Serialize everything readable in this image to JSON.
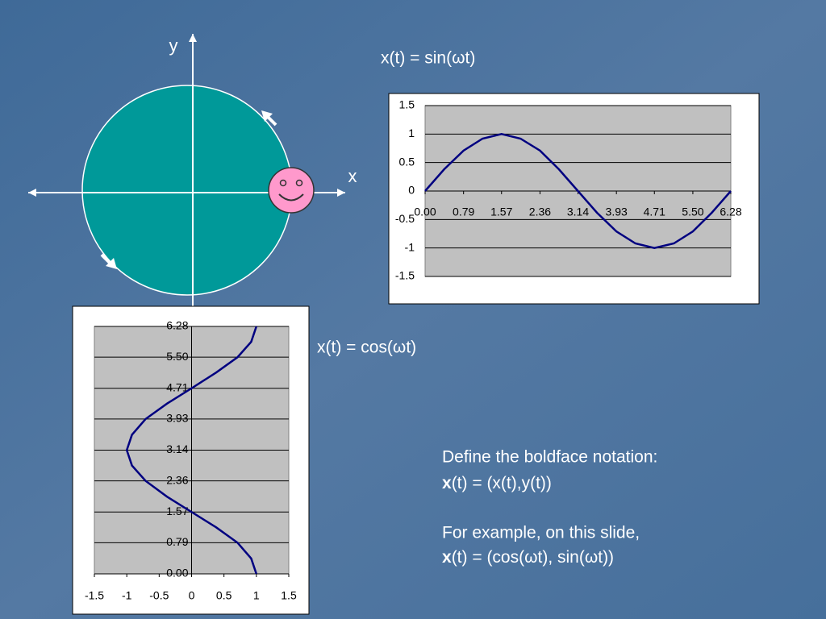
{
  "chart_data": [
    {
      "type": "line",
      "title": "x(t) = sin(ωt)",
      "x": [
        0,
        0.39,
        0.79,
        1.18,
        1.57,
        1.96,
        2.36,
        2.75,
        3.14,
        3.53,
        3.93,
        4.32,
        4.71,
        5.11,
        5.5,
        5.89,
        6.28
      ],
      "y": [
        0,
        0.38,
        0.71,
        0.92,
        1,
        0.92,
        0.71,
        0.38,
        0,
        -0.38,
        -0.71,
        -0.92,
        -1,
        -0.92,
        -0.71,
        -0.38,
        0
      ],
      "color": "#000080",
      "xlim": [
        0,
        6.28
      ],
      "ylim": [
        -1.5,
        1.5
      ],
      "xticks": [
        {
          "value": 0,
          "label": "0.00"
        },
        0.79,
        1.57,
        2.36,
        3.14,
        3.93,
        4.71,
        {
          "value": 5.5,
          "label": "5.50"
        },
        6.28
      ],
      "yticks": [
        1.5,
        1,
        0.5,
        0,
        -0.5,
        -1,
        -1.5
      ],
      "grid": true
    },
    {
      "type": "line",
      "title": "x(t) = cos(ωt)",
      "x": [
        1,
        0.92,
        0.71,
        0.38,
        0,
        -0.38,
        -0.71,
        -0.92,
        -1,
        -0.92,
        -0.71,
        -0.38,
        0,
        0.38,
        0.71,
        0.92,
        1
      ],
      "y": [
        0,
        0.39,
        0.79,
        1.18,
        1.57,
        1.96,
        2.36,
        2.75,
        3.14,
        3.53,
        3.93,
        4.32,
        4.71,
        5.11,
        5.5,
        5.89,
        6.28
      ],
      "color": "#000080",
      "xlim": [
        -1.5,
        1.5
      ],
      "ylim": [
        0,
        6.28
      ],
      "xticks": [
        -1.5,
        -1,
        -0.5,
        0,
        0.5,
        1,
        1.5
      ],
      "yticks": [
        {
          "value": 0,
          "label": "0.00"
        },
        0.79,
        1.57,
        2.36,
        3.14,
        3.93,
        4.71,
        {
          "value": 5.5,
          "label": "5.50"
        },
        6.28
      ],
      "grid": true
    }
  ],
  "diagram": {
    "y_label": "y",
    "x_label": "x"
  },
  "notes": {
    "line1": "Define the boldface notation:",
    "line2_bold": "x",
    "line2": "(t) = (x(t),y(t))",
    "line3": "For example, on this slide,",
    "line4_bold": "x",
    "line4": "(t) = (cos(ωt), sin(ωt))"
  }
}
